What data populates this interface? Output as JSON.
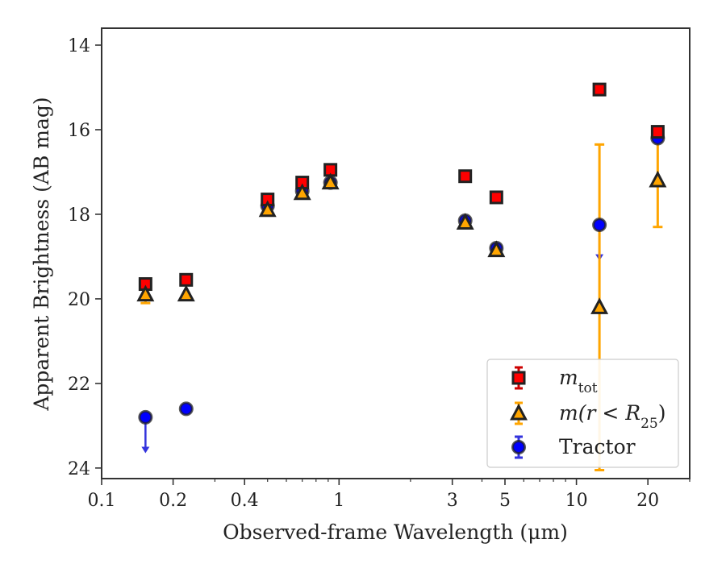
{
  "chart_data": {
    "type": "scatter",
    "xlabel": "Observed-frame Wavelength (μm)",
    "ylabel": "Apparent Brightness (AB mag)",
    "xscale": "log",
    "xlim": [
      0.1,
      30
    ],
    "ylim": [
      24.25,
      13.6
    ],
    "y_inverted": true,
    "x_ticks": [
      {
        "value": 0.1,
        "label": "0.1"
      },
      {
        "value": 0.2,
        "label": "0.2"
      },
      {
        "value": 0.4,
        "label": "0.4"
      },
      {
        "value": 1,
        "label": "1"
      },
      {
        "value": 3,
        "label": "3"
      },
      {
        "value": 5,
        "label": "5"
      },
      {
        "value": 10,
        "label": "10"
      },
      {
        "value": 20,
        "label": "20"
      }
    ],
    "y_ticks": [
      {
        "value": 14,
        "label": "14"
      },
      {
        "value": 16,
        "label": "16"
      },
      {
        "value": 18,
        "label": "18"
      },
      {
        "value": 20,
        "label": "20"
      },
      {
        "value": 22,
        "label": "22"
      },
      {
        "value": 24,
        "label": "24"
      }
    ],
    "grid": false,
    "legend_position": "lower-right",
    "series": [
      {
        "name": "Tractor",
        "legend_label": "Tractor",
        "marker": "circle",
        "color": "#0000ff",
        "edge_color": "#222222",
        "error_color": "#3333dd",
        "points": [
          {
            "x": 0.153,
            "y": 22.8,
            "upper_limit": true
          },
          {
            "x": 0.227,
            "y": 22.6
          },
          {
            "x": 0.5,
            "y": 17.8
          },
          {
            "x": 0.7,
            "y": 17.45
          },
          {
            "x": 0.92,
            "y": 17.25
          },
          {
            "x": 3.4,
            "y": 18.15
          },
          {
            "x": 4.6,
            "y": 18.8
          },
          {
            "x": 12.5,
            "y": 18.25,
            "upper_limit": true
          },
          {
            "x": 22.0,
            "y": 16.2
          }
        ]
      },
      {
        "name": "m_tot",
        "legend_label": "m",
        "legend_sub": "tot",
        "marker": "square",
        "color": "#ff0000",
        "edge_color": "#222222",
        "error_color": "#cc0000",
        "points": [
          {
            "x": 0.153,
            "y": 19.65
          },
          {
            "x": 0.227,
            "y": 19.55
          },
          {
            "x": 0.5,
            "y": 17.65
          },
          {
            "x": 0.7,
            "y": 17.25
          },
          {
            "x": 0.92,
            "y": 16.95
          },
          {
            "x": 3.4,
            "y": 17.1
          },
          {
            "x": 4.6,
            "y": 17.6
          },
          {
            "x": 12.5,
            "y": 15.05
          },
          {
            "x": 22.0,
            "y": 16.05
          }
        ]
      },
      {
        "name": "m(r<R_25)",
        "legend_label": "m(r < R",
        "legend_sub": "25",
        "legend_tail": ")",
        "marker": "triangle",
        "color": "#ffa500",
        "edge_color": "#222222",
        "error_color": "#ffa500",
        "points": [
          {
            "x": 0.153,
            "y": 19.9,
            "err": 0.2
          },
          {
            "x": 0.227,
            "y": 19.9
          },
          {
            "x": 0.5,
            "y": 17.9
          },
          {
            "x": 0.7,
            "y": 17.5
          },
          {
            "x": 0.92,
            "y": 17.25
          },
          {
            "x": 3.4,
            "y": 18.2
          },
          {
            "x": 4.6,
            "y": 18.85
          },
          {
            "x": 12.5,
            "y": 20.2,
            "err": 3.85
          },
          {
            "x": 22.0,
            "y": 17.2,
            "err": 1.1
          }
        ]
      }
    ],
    "legend_order": [
      "m_tot",
      "m(r<R_25)",
      "Tractor"
    ]
  }
}
